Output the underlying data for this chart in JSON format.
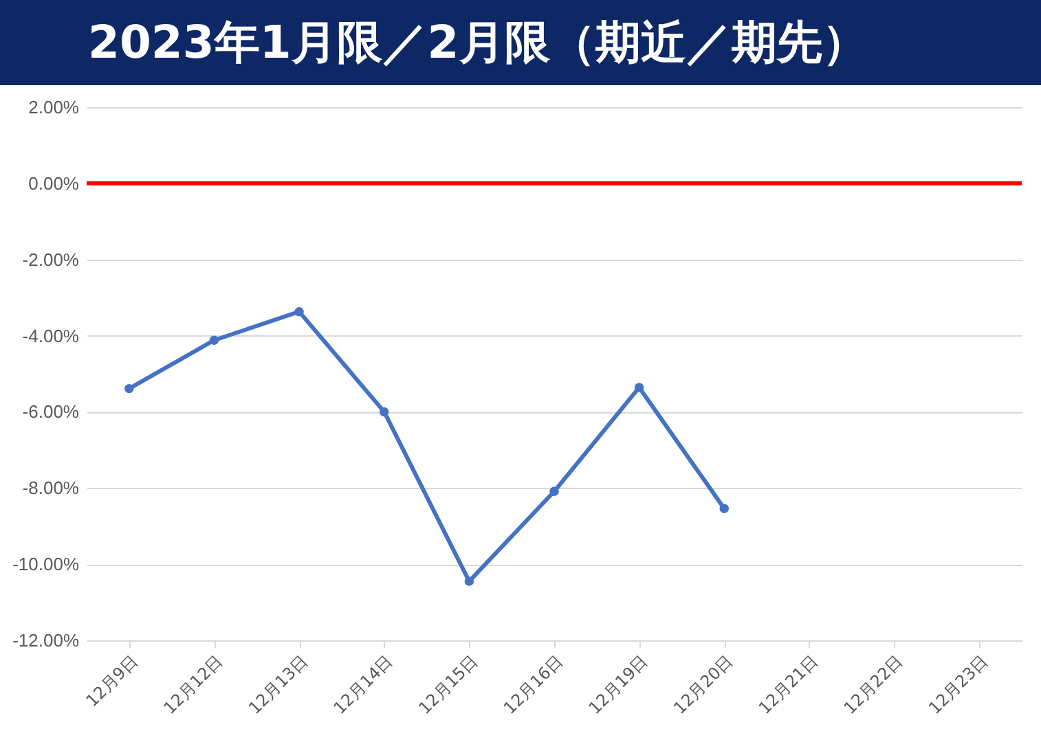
{
  "chart_data": {
    "type": "line",
    "title": "2023年1月限／2月限（期近／期先）",
    "categories": [
      "12月9日",
      "12月12日",
      "12月13日",
      "12月14日",
      "12月15日",
      "12月16日",
      "12月19日",
      "12月20日",
      "12月21日",
      "12月22日",
      "12月23日"
    ],
    "series": [
      {
        "color": "#4472c4",
        "values": [
          -5.39,
          -4.12,
          -3.37,
          -6.0,
          -10.45,
          -8.09,
          -5.36,
          -8.54,
          null,
          null,
          null
        ]
      }
    ],
    "ylim": [
      -12,
      2
    ],
    "yticks": [
      {
        "value": -12,
        "label": "-12.00%"
      },
      {
        "value": -10,
        "label": "-10.00%"
      },
      {
        "value": -8,
        "label": "-8.00%"
      },
      {
        "value": -6,
        "label": "-6.00%"
      },
      {
        "value": -4,
        "label": "-4.00%"
      },
      {
        "value": -2,
        "label": "-2.00%"
      },
      {
        "value": 0,
        "label": "0.00%"
      },
      {
        "value": 2,
        "label": "2.00%"
      }
    ],
    "ref_lines": [
      {
        "axis": "y",
        "value": 0,
        "color": "#ff0000"
      }
    ],
    "grid": "y",
    "marker": "circle",
    "line_style": "solid",
    "legend": false
  }
}
